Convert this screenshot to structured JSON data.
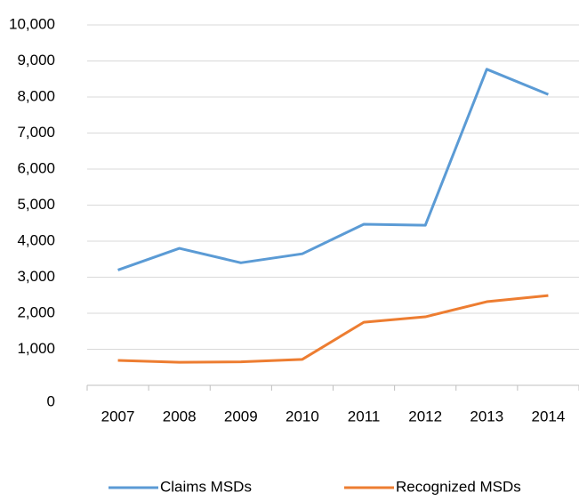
{
  "chart_data": {
    "type": "line",
    "categories": [
      "2007",
      "2008",
      "2009",
      "2010",
      "2011",
      "2012",
      "2013",
      "2014"
    ],
    "series": [
      {
        "name": "Claims MSDs",
        "color": "#5b9bd5",
        "values": [
          3200,
          3800,
          3400,
          3650,
          4470,
          4440,
          8770,
          8070
        ]
      },
      {
        "name": "Recognized MSDs",
        "color": "#ed7d31",
        "values": [
          690,
          640,
          650,
          720,
          1750,
          1900,
          2320,
          2490
        ]
      }
    ],
    "ylim": [
      0,
      10000
    ],
    "yticks": [
      0,
      {
        "value": 1000,
        "label": "1,000"
      },
      {
        "value": 2000,
        "label": "2,000"
      },
      {
        "value": 3000,
        "label": "3,000"
      },
      {
        "value": 4000,
        "label": "4,000"
      },
      {
        "value": 5000,
        "label": "5,000"
      },
      {
        "value": 6000,
        "label": "6,000"
      },
      {
        "value": 7000,
        "label": "7,000"
      },
      {
        "value": 8000,
        "label": "8,000"
      },
      {
        "value": 9000,
        "label": "9,000"
      },
      {
        "value": 10000,
        "label": "10,000"
      }
    ],
    "grid": true,
    "legend": "bottom"
  }
}
